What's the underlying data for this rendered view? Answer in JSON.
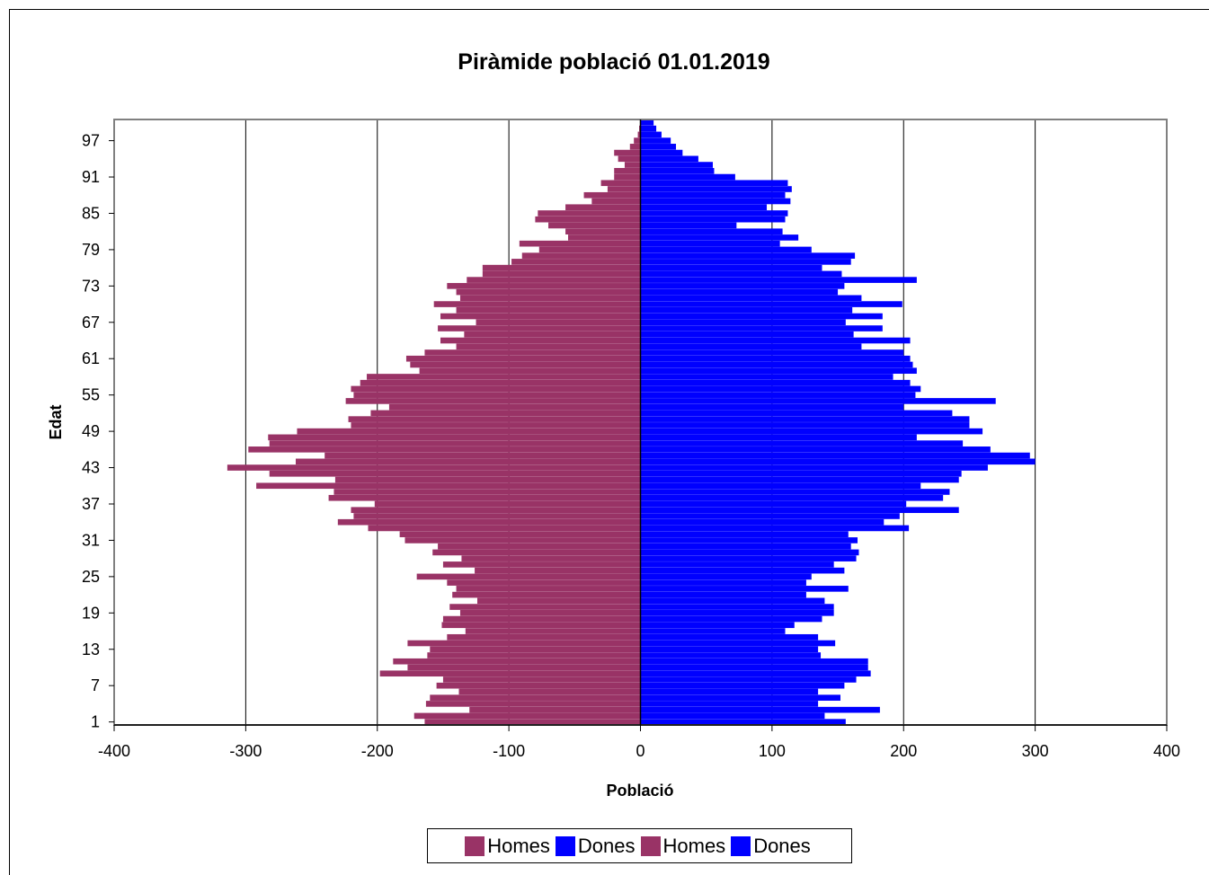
{
  "chart_data": {
    "type": "bar",
    "title": "Piràmide població 01.01.2019",
    "xlabel": "Població",
    "ylabel": "Edat",
    "xlim": [
      -400,
      400
    ],
    "xticks": [
      "-400",
      "-300",
      "-200",
      "-100",
      "0",
      "100",
      "200",
      "300",
      "400"
    ],
    "yticks": [
      "1",
      "7",
      "13",
      "19",
      "25",
      "31",
      "37",
      "43",
      "49",
      "55",
      "61",
      "67",
      "73",
      "79",
      "85",
      "91",
      "97"
    ],
    "orientation": "horizontal",
    "grid": "vertical",
    "ages": [
      1,
      2,
      3,
      4,
      5,
      6,
      7,
      8,
      9,
      10,
      11,
      12,
      13,
      14,
      15,
      16,
      17,
      18,
      19,
      20,
      21,
      22,
      23,
      24,
      25,
      26,
      27,
      28,
      29,
      30,
      31,
      32,
      33,
      34,
      35,
      36,
      37,
      38,
      39,
      40,
      41,
      42,
      43,
      44,
      45,
      46,
      47,
      48,
      49,
      50,
      51,
      52,
      53,
      54,
      55,
      56,
      57,
      58,
      59,
      60,
      61,
      62,
      63,
      64,
      65,
      66,
      67,
      68,
      69,
      70,
      71,
      72,
      73,
      74,
      75,
      76,
      77,
      78,
      79,
      80,
      81,
      82,
      83,
      84,
      85,
      86,
      87,
      88,
      89,
      90,
      91,
      92,
      93,
      94,
      95,
      96,
      97,
      98,
      99,
      100
    ],
    "series": [
      {
        "name": "Homes",
        "color": "#993366",
        "values": [
          -164,
          -172,
          -130,
          -163,
          -160,
          -138,
          -155,
          -150,
          -198,
          -177,
          -188,
          -162,
          -160,
          -177,
          -147,
          -133,
          -151,
          -150,
          -137,
          -145,
          -124,
          -143,
          -140,
          -147,
          -170,
          -126,
          -150,
          -136,
          -158,
          -154,
          -179,
          -183,
          -207,
          -230,
          -218,
          -220,
          -202,
          -237,
          -233,
          -292,
          -232,
          -282,
          -314,
          -262,
          -240,
          -298,
          -282,
          -283,
          -261,
          -220,
          -222,
          -205,
          -191,
          -224,
          -218,
          -220,
          -213,
          -208,
          -168,
          -175,
          -178,
          -164,
          -140,
          -152,
          -134,
          -154,
          -125,
          -152,
          -140,
          -157,
          -137,
          -140,
          -147,
          -132,
          -120,
          -120,
          -98,
          -90,
          -77,
          -92,
          -55,
          -57,
          -70,
          -80,
          -78,
          -57,
          -37,
          -43,
          -25,
          -30,
          -20,
          -20,
          -12,
          -17,
          -20,
          -8,
          -5,
          -2,
          -1,
          0
        ]
      },
      {
        "name": "Dones",
        "color": "#0000ff",
        "values": [
          156,
          140,
          182,
          135,
          152,
          135,
          155,
          164,
          175,
          173,
          173,
          137,
          135,
          148,
          135,
          110,
          117,
          138,
          147,
          147,
          140,
          126,
          158,
          126,
          130,
          155,
          147,
          164,
          166,
          160,
          165,
          158,
          204,
          185,
          197,
          242,
          202,
          230,
          235,
          213,
          242,
          244,
          264,
          300,
          296,
          266,
          245,
          210,
          260,
          250,
          250,
          237,
          200,
          270,
          209,
          213,
          205,
          192,
          210,
          207,
          205,
          200,
          168,
          205,
          162,
          184,
          156,
          184,
          161,
          199,
          168,
          150,
          155,
          210,
          153,
          138,
          160,
          163,
          130,
          106,
          120,
          108,
          73,
          110,
          112,
          96,
          114,
          110,
          115,
          112,
          72,
          56,
          55,
          44,
          32,
          27,
          23,
          16,
          12,
          10
        ]
      },
      {
        "name": "Homes",
        "color": "#993366",
        "values": []
      },
      {
        "name": "Dones",
        "color": "#0000ff",
        "values": []
      }
    ],
    "legend_position": "bottom"
  },
  "legend": {
    "items": [
      {
        "label": "Homes",
        "color": "#993366"
      },
      {
        "label": "Dones",
        "color": "#0000ff"
      },
      {
        "label": "Homes",
        "color": "#993366"
      },
      {
        "label": "Dones",
        "color": "#0000ff"
      }
    ]
  }
}
